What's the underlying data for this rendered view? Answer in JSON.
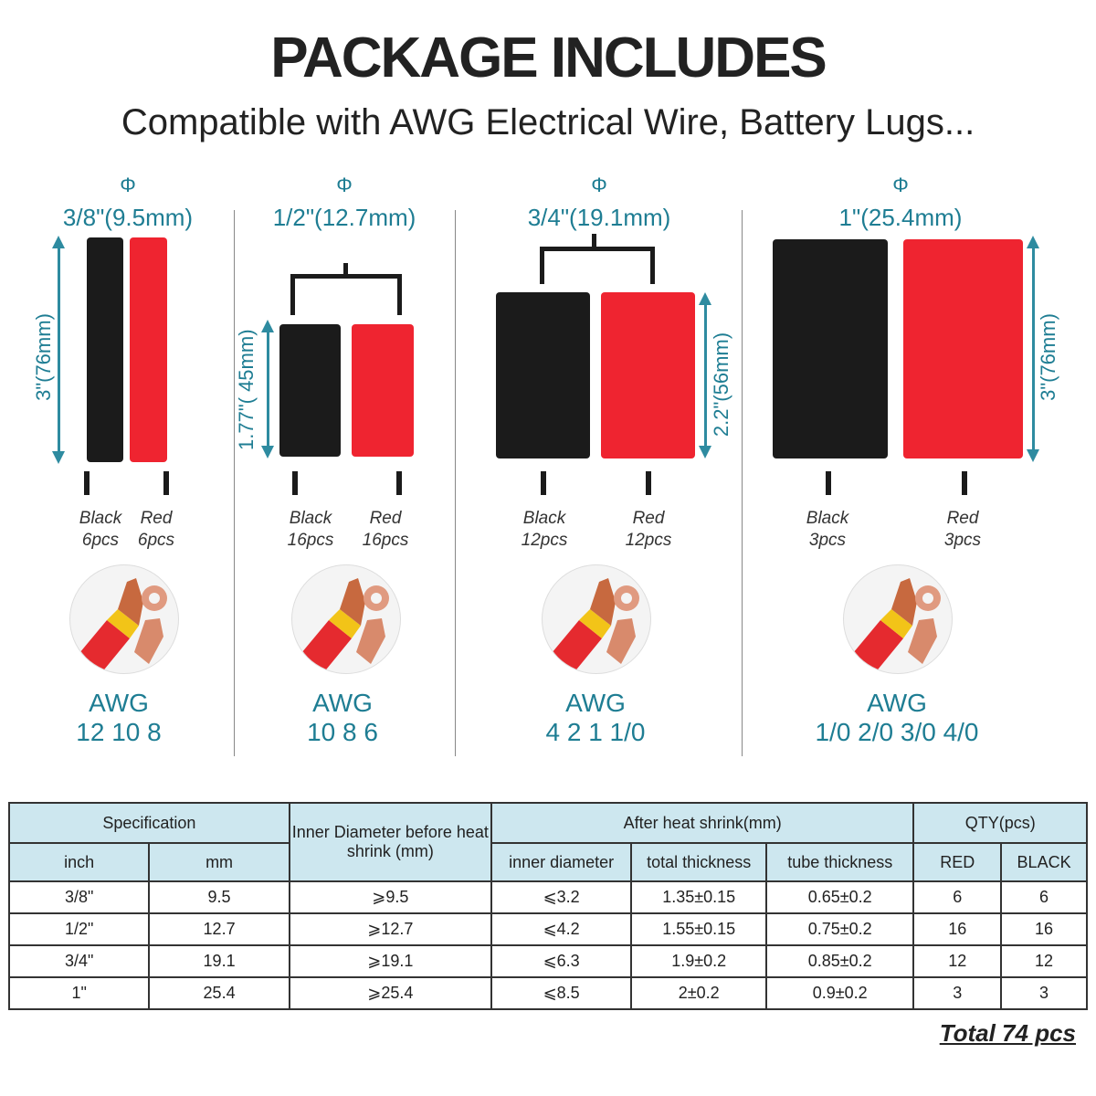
{
  "header": {
    "title": "PACKAGE INCLUDES",
    "subtitle": "Compatible with AWG Electrical Wire, Battery Lugs..."
  },
  "sizes": [
    {
      "phi": "Φ",
      "diameter": "3/8\"(9.5mm)",
      "length": "3\"(76mm)",
      "black_label": "Black",
      "black_qty": "6pcs",
      "red_label": "Red",
      "red_qty": "6pcs",
      "awg_label": "AWG",
      "awg_values": "12 10 8"
    },
    {
      "phi": "Φ",
      "diameter": "1/2\"(12.7mm)",
      "length": "1.77\"( 45mm)",
      "black_label": "Black",
      "black_qty": "16pcs",
      "red_label": "Red",
      "red_qty": "16pcs",
      "awg_label": "AWG",
      "awg_values": "10 8 6"
    },
    {
      "phi": "Φ",
      "diameter": "3/4\"(19.1mm)",
      "length": "2.2\"(56mm)",
      "black_label": "Black",
      "black_qty": "12pcs",
      "red_label": "Red",
      "red_qty": "12pcs",
      "awg_label": "AWG",
      "awg_values": "4 2 1 1/0"
    },
    {
      "phi": "Φ",
      "diameter": "1\"(25.4mm)",
      "length": "3\"(76mm)",
      "black_label": "Black",
      "black_qty": "3pcs",
      "red_label": "Red",
      "red_qty": "3pcs",
      "awg_label": "AWG",
      "awg_values": "1/0 2/0 3/0 4/0"
    }
  ],
  "table": {
    "group_headers": {
      "specification": "Specification",
      "inner_diameter": "Inner Diameter before heat shrink (mm)",
      "after_shrink": "After heat shrink(mm)",
      "qty": "QTY(pcs)"
    },
    "sub_headers": {
      "inch": "inch",
      "mm": "mm",
      "inner_after": "inner diameter",
      "total_thickness": "total thickness",
      "tube_thickness": "tube thickness",
      "red": "RED",
      "black": "BLACK"
    },
    "rows": [
      {
        "inch": "3/8\"",
        "mm": "9.5",
        "inner_before": "⩾9.5",
        "inner_after": "⩽3.2",
        "total_thickness": "1.35±0.15",
        "tube_thickness": "0.65±0.2",
        "red": "6",
        "black": "6"
      },
      {
        "inch": "1/2\"",
        "mm": "12.7",
        "inner_before": "⩾12.7",
        "inner_after": "⩽4.2",
        "total_thickness": "1.55±0.15",
        "tube_thickness": "0.75±0.2",
        "red": "16",
        "black": "16"
      },
      {
        "inch": "3/4\"",
        "mm": "19.1",
        "inner_before": "⩾19.1",
        "inner_after": "⩽6.3",
        "total_thickness": "1.9±0.2",
        "tube_thickness": "0.85±0.2",
        "red": "12",
        "black": "12"
      },
      {
        "inch": "1\"",
        "mm": "25.4",
        "inner_before": "⩾25.4",
        "inner_after": "⩽8.5",
        "total_thickness": "2±0.2",
        "tube_thickness": "0.9±0.2",
        "red": "3",
        "black": "3"
      }
    ]
  },
  "total": "Total 74 pcs",
  "colors": {
    "accent": "#1e7d93",
    "tube_black": "#1b1b1b",
    "tube_red": "#ef2430",
    "table_header": "#cde7ef"
  }
}
